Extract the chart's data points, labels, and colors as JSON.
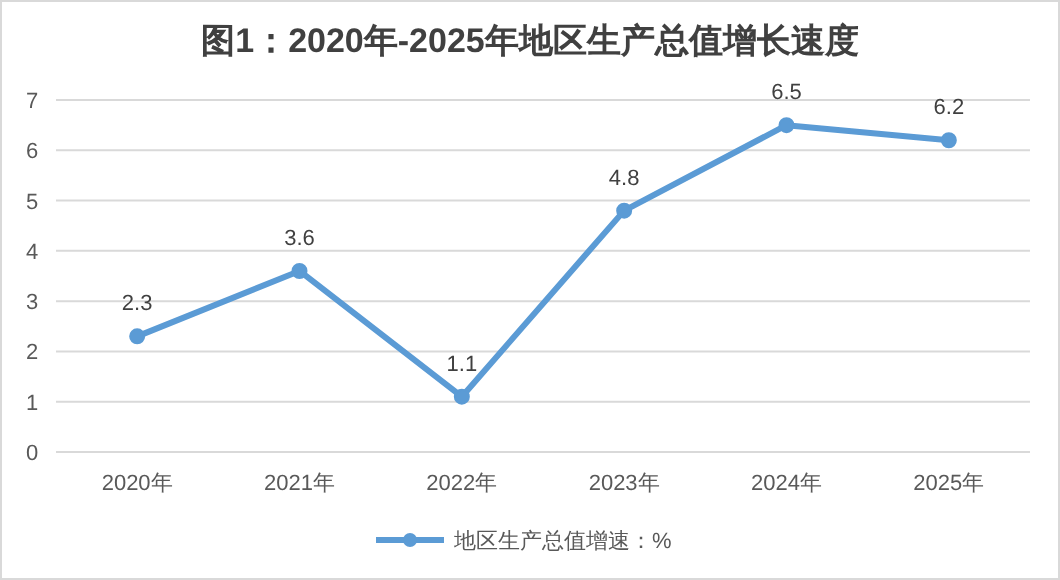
{
  "chart_data": {
    "type": "line",
    "title": "图1：2020年-2025年地区生产总值增长速度",
    "categories": [
      "2020年",
      "2021年",
      "2022年",
      "2023年",
      "2024年",
      "2025年"
    ],
    "series": [
      {
        "name": "地区生产总值增速：%",
        "color": "#5b9bd5",
        "values": [
          2.3,
          3.6,
          1.1,
          4.8,
          6.5,
          6.2
        ]
      }
    ],
    "ylim": [
      0,
      7
    ],
    "yticks": [
      0,
      1,
      2,
      3,
      4,
      5,
      6,
      7
    ],
    "grid": "y",
    "legend": "bottom",
    "marker": "circle",
    "line_style": "solid",
    "data_labels": true
  }
}
